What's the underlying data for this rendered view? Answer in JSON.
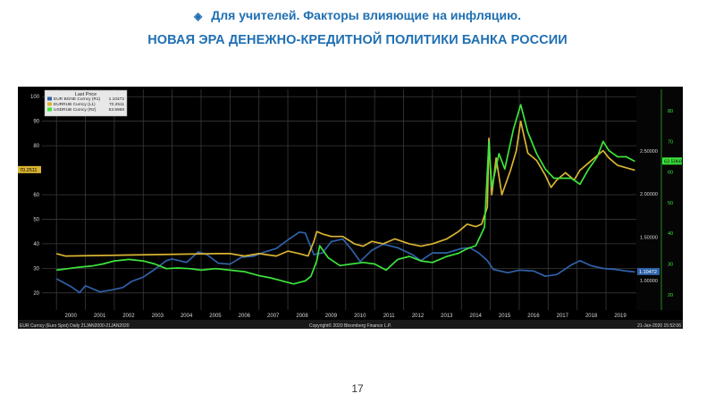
{
  "header": {
    "title": "Для учителей. Факторы влияющие на инфляцию.",
    "subtitle": "НОВАЯ ЭРА ДЕНЕЖНО-КРЕДИТНОЙ ПОЛИТИКИ БАНКА РОССИИ",
    "bullet_icon": "diamond-bullet-icon"
  },
  "page_number": "17",
  "colors": {
    "background": "#000000",
    "grid": "#3a3a3a",
    "eurusd": "#2f62a8",
    "eurrub": "#d9b431",
    "usdrub": "#3ce53c",
    "axis_text": "#d8d8d8",
    "right_axis_text": "#3ce53c"
  },
  "chart_data": {
    "type": "line",
    "legend": {
      "title": "Last Price",
      "placement": "top-left",
      "entries": [
        {
          "label": "EUR BGNE Curncy  (R1)",
          "value": "1.10472",
          "color": "#2f62a8"
        },
        {
          "label": "EURRUB Curncy  (L1)",
          "value": "70.2511",
          "color": "#d9b431"
        },
        {
          "label": "USDRUB Curncy  (R2)",
          "value": "63.5968",
          "color": "#3ce53c"
        }
      ]
    },
    "x_labels": [
      "2000",
      "2001",
      "2002",
      "2003",
      "2004",
      "2005",
      "2006",
      "2007",
      "2008",
      "2009",
      "2010",
      "2011",
      "2012",
      "2013",
      "2014",
      "2015",
      "2016",
      "2017",
      "2018",
      "2019"
    ],
    "x_range": [
      1999.5,
      2020.05
    ],
    "left_axis": {
      "ticks": [
        "100",
        "90",
        "80",
        "60",
        "50",
        "40",
        "30",
        "20"
      ],
      "range": [
        13,
        103
      ],
      "current_value_label": "70.2511"
    },
    "right_axis_1": {
      "ticks": [
        "2.50000",
        "2.00000",
        "1.50000",
        "1.00000"
      ],
      "range": [
        0.66,
        3.21
      ],
      "current_value_label": "1.10472"
    },
    "right_axis_2": {
      "ticks": [
        "80",
        "70",
        "60",
        "50",
        "40",
        "30",
        "20"
      ],
      "range": [
        15,
        87
      ],
      "current_value_label": "63.5968"
    },
    "grid": true,
    "footer_left": "EUR Curncy (Euro Spot)  Daily 21JAN2000-21JAN2020",
    "footer_center": "Copyright© 2020 Bloomberg Finance L.P.",
    "footer_right": "21-Jan-2020 15:52:06",
    "series": [
      {
        "name": "EUR BGNE Curncy",
        "axis": "right1",
        "color": "#2f62a8",
        "x": [
          2000.0,
          2000.5,
          2000.8,
          2001.0,
          2001.5,
          2001.9,
          2002.3,
          2002.6,
          2003.0,
          2003.4,
          2003.8,
          2004.0,
          2004.5,
          2004.9,
          2005.2,
          2005.6,
          2006.0,
          2006.4,
          2006.8,
          2007.2,
          2007.6,
          2008.0,
          2008.4,
          2008.6,
          2008.9,
          2009.2,
          2009.5,
          2009.9,
          2010.2,
          2010.5,
          2010.9,
          2011.3,
          2011.8,
          2012.3,
          2012.6,
          2013.0,
          2013.5,
          2014.0,
          2014.3,
          2014.6,
          2014.9,
          2015.1,
          2015.6,
          2016.0,
          2016.5,
          2016.9,
          2017.3,
          2017.8,
          2018.1,
          2018.5,
          2018.9,
          2019.3,
          2019.7,
          2020.0
        ],
        "values": [
          1.02,
          0.93,
          0.86,
          0.94,
          0.87,
          0.89,
          0.92,
          0.99,
          1.04,
          1.13,
          1.23,
          1.25,
          1.21,
          1.33,
          1.3,
          1.2,
          1.19,
          1.27,
          1.28,
          1.33,
          1.37,
          1.47,
          1.56,
          1.55,
          1.3,
          1.32,
          1.45,
          1.48,
          1.36,
          1.22,
          1.35,
          1.42,
          1.38,
          1.3,
          1.23,
          1.32,
          1.32,
          1.37,
          1.38,
          1.32,
          1.23,
          1.13,
          1.09,
          1.12,
          1.11,
          1.05,
          1.07,
          1.18,
          1.23,
          1.17,
          1.14,
          1.13,
          1.11,
          1.1
        ]
      },
      {
        "name": "EURRUB Curncy",
        "axis": "left1",
        "color": "#d9b431",
        "x": [
          2000.0,
          2000.3,
          2005.6,
          2006.0,
          2006.5,
          2007.0,
          2007.6,
          2008.0,
          2008.4,
          2008.7,
          2008.9,
          2009.0,
          2009.2,
          2009.5,
          2009.9,
          2010.3,
          2010.6,
          2010.9,
          2011.3,
          2011.7,
          2012.2,
          2012.6,
          2013.0,
          2013.5,
          2013.9,
          2014.2,
          2014.5,
          2014.7,
          2014.9,
          2014.95,
          2015.05,
          2015.2,
          2015.4,
          2015.7,
          2015.9,
          2016.05,
          2016.3,
          2016.6,
          2016.9,
          2017.1,
          2017.3,
          2017.6,
          2017.9,
          2018.1,
          2018.4,
          2018.7,
          2018.9,
          2019.1,
          2019.4,
          2019.7,
          2020.0
        ],
        "values": [
          36,
          35,
          36,
          36,
          35,
          36,
          35,
          37,
          36,
          35,
          41,
          45,
          44,
          43,
          43,
          40,
          39,
          41,
          40,
          42,
          40,
          39,
          40,
          42,
          45,
          48,
          47,
          48,
          55,
          83,
          60,
          75,
          60,
          70,
          78,
          90,
          77,
          74,
          68,
          63,
          66,
          69,
          66,
          70,
          73,
          76,
          78,
          75,
          72,
          71,
          70
        ]
      },
      {
        "name": "USDRUB Curncy",
        "axis": "right2",
        "color": "#3ce53c",
        "x": [
          2000.0,
          2000.4,
          2000.8,
          2001.2,
          2001.6,
          2002.0,
          2002.5,
          2003.0,
          2003.4,
          2003.8,
          2004.2,
          2004.6,
          2005.0,
          2005.5,
          2006.0,
          2006.5,
          2007.0,
          2007.4,
          2007.8,
          2008.2,
          2008.6,
          2008.8,
          2009.0,
          2009.1,
          2009.4,
          2009.8,
          2010.2,
          2010.6,
          2011.0,
          2011.4,
          2011.8,
          2012.2,
          2012.6,
          2013.0,
          2013.5,
          2013.9,
          2014.2,
          2014.5,
          2014.8,
          2014.95,
          2015.05,
          2015.3,
          2015.5,
          2015.8,
          2016.05,
          2016.3,
          2016.6,
          2016.9,
          2017.2,
          2017.5,
          2017.8,
          2018.1,
          2018.4,
          2018.7,
          2018.9,
          2019.1,
          2019.4,
          2019.7,
          2020.0
        ],
        "values": [
          28,
          28.5,
          29,
          29.3,
          30,
          31,
          31.5,
          31,
          30,
          28.5,
          28.7,
          28.5,
          28,
          28.5,
          28,
          27.5,
          26.2,
          25.5,
          24.5,
          23.5,
          24.5,
          26,
          31,
          36,
          32,
          29.5,
          30,
          30.5,
          30,
          28,
          31.5,
          32.5,
          31,
          30.5,
          32.5,
          33.5,
          35,
          36,
          42,
          70,
          55,
          66,
          61,
          74,
          82,
          73,
          66,
          61,
          58,
          58,
          58,
          56,
          61,
          65,
          70,
          67,
          65,
          65,
          63.5
        ]
      }
    ]
  }
}
